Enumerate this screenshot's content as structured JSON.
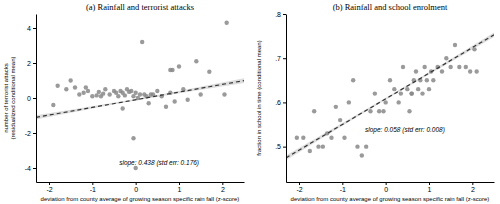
{
  "chart_data": [
    {
      "type": "scatter",
      "title": "(a) Rainfall and terrorist attacks",
      "x_label": "deviation from county average of growing season specific rain fall (z-score)",
      "y_label": "number of terrorist attacks\n(residualized conditional mean)",
      "annotation": "slope: 0.438 (std err: 0.176)",
      "xlim": [
        -2.3,
        2.5
      ],
      "xticks": [
        -2,
        -1,
        0,
        1,
        2
      ],
      "ylim": [
        -4.8,
        4.8
      ],
      "yticks": [
        -4,
        -2,
        0,
        2,
        4
      ],
      "grid": false,
      "series": [
        {
          "type": "area",
          "color": "#bbbbbb",
          "x": [
            -2.3,
            -1.5,
            -0.7,
            0.1,
            0.9,
            1.7,
            2.5
          ],
          "lower": [
            -1.2284,
            -0.843,
            -0.4639,
            -0.1042,
            0.2274,
            0.5459,
            0.8602
          ],
          "upper": [
            -0.9864,
            -0.671,
            -0.3493,
            -0.0082,
            0.361,
            0.7433,
            1.1298
          ]
        },
        {
          "type": "scatter",
          "color": "#888888",
          "marker": "circle",
          "x": [
            -1.9,
            -1.8,
            -1.6,
            -1.5,
            -1.4,
            -1.3,
            -1.2,
            -1.15,
            -1.1,
            -1.0,
            -0.9,
            -0.85,
            -0.8,
            -0.75,
            -0.7,
            -0.6,
            -0.5,
            -0.45,
            -0.4,
            -0.35,
            -0.3,
            -0.25,
            -0.2,
            -0.15,
            -0.1,
            -0.05,
            0.0,
            0.05,
            0.1,
            0.15,
            0.2,
            0.25,
            0.3,
            0.35,
            0.4,
            0.5,
            0.6,
            0.7,
            0.8,
            0.85,
            0.9,
            1.0,
            1.1,
            1.2,
            1.4,
            1.5,
            1.7,
            2.05,
            2.1,
            -0.05,
            -0.3,
            0.0,
            0.8
          ],
          "values": [
            -0.4,
            0.7,
            0.5,
            1.0,
            0.6,
            0.2,
            0.3,
            0.6,
            0.4,
            0.1,
            0.15,
            0.35,
            0.1,
            0.25,
            0.5,
            0.2,
            0.4,
            0.3,
            0.1,
            0.4,
            0.3,
            0.15,
            0.5,
            0.35,
            0.4,
            0.1,
            0.3,
            0.0,
            0.2,
            3.2,
            0.2,
            0.1,
            -0.3,
            0.2,
            0.2,
            0.4,
            0.1,
            -0.5,
            0.3,
            1.6,
            -0.2,
            1.8,
            0.5,
            -0.1,
            2.1,
            0.2,
            1.5,
            0.2,
            4.3,
            -2.3,
            -0.6,
            -4.0,
            1.6
          ]
        },
        {
          "type": "line",
          "color": "#333333",
          "line_style": "dashed",
          "x": [
            -2.3,
            -1.5,
            -0.7,
            0.1,
            0.9,
            1.7,
            2.5
          ],
          "values": [
            -1.1074,
            -0.757,
            -0.4066,
            -0.0562,
            0.2942,
            0.6446,
            0.995
          ]
        }
      ]
    },
    {
      "type": "scatter",
      "title": "(b) Rainfall and school enrolment",
      "x_label": "deviation from county average of growing season specific rain fall (z-score)",
      "y_label": "fraction in school in time (conditional mean)",
      "annotation": "slope: 0.058 (std err: 0.008)",
      "xlim": [
        -2.3,
        2.5
      ],
      "xticks": [
        -2,
        -1,
        0,
        1,
        2
      ],
      "ylim": [
        0.42,
        0.8
      ],
      "yticks": [
        {
          "value": 0.5,
          "label": ".5"
        },
        {
          "value": 0.6,
          "label": ".6"
        },
        {
          "value": 0.7,
          "label": ".7"
        },
        {
          "value": 0.8,
          "label": ".8"
        }
      ],
      "grid": false,
      "series": [
        {
          "type": "area",
          "color": "#bbbbbb",
          "x": [
            -2.3,
            -1.5,
            -0.7,
            0.1,
            0.9,
            1.7,
            2.5
          ],
          "lower": [
            0.4693,
            0.517,
            0.5646,
            0.6116,
            0.6576,
            0.7029,
            0.7479
          ],
          "upper": [
            0.4799,
            0.525,
            0.5702,
            0.616,
            0.6628,
            0.7103,
            0.7581
          ]
        },
        {
          "type": "scatter",
          "color": "#888888",
          "marker": "circle",
          "x": [
            -2.05,
            -1.9,
            -1.75,
            -1.65,
            -1.55,
            -1.45,
            -1.35,
            -1.15,
            -1.05,
            -0.95,
            -0.85,
            -0.75,
            -0.55,
            -0.45,
            -0.35,
            -0.25,
            -0.15,
            -0.05,
            0.0,
            0.1,
            0.2,
            0.3,
            0.35,
            0.4,
            0.5,
            0.55,
            0.6,
            0.65,
            0.7,
            0.75,
            0.8,
            0.85,
            0.9,
            0.95,
            1.0,
            1.05,
            1.1,
            1.2,
            1.3,
            1.4,
            1.5,
            1.6,
            1.7,
            1.85,
            1.95,
            2.05,
            2.1,
            -1.25,
            0.6,
            -0.65
          ],
          "values": [
            0.52,
            0.52,
            0.49,
            0.58,
            0.5,
            0.5,
            0.53,
            0.59,
            0.56,
            0.52,
            0.6,
            0.65,
            0.48,
            0.5,
            0.58,
            0.62,
            0.58,
            0.58,
            0.6,
            0.65,
            0.63,
            0.6,
            0.62,
            0.68,
            0.63,
            0.58,
            0.62,
            0.65,
            0.67,
            0.63,
            0.65,
            0.62,
            0.68,
            0.65,
            0.63,
            0.67,
            0.65,
            0.68,
            0.67,
            0.7,
            0.68,
            0.73,
            0.68,
            0.68,
            0.67,
            0.72,
            0.67,
            0.52,
            0.62,
            0.5
          ]
        },
        {
          "type": "line",
          "color": "#333333",
          "line_style": "dashed",
          "x": [
            -2.3,
            -1.5,
            -0.7,
            0.1,
            0.9,
            1.7,
            2.5
          ],
          "values": [
            0.4746,
            0.521,
            0.5674,
            0.6138,
            0.6602,
            0.7066,
            0.753
          ]
        }
      ]
    }
  ]
}
